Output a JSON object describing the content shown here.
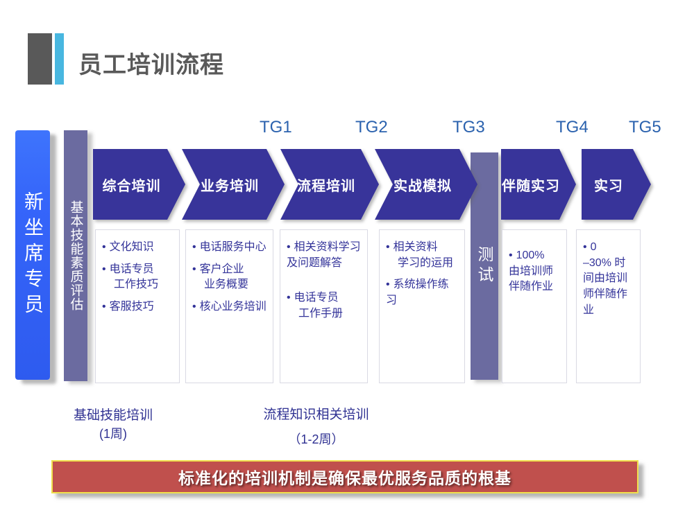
{
  "title": "员工培训流程",
  "bullet_char": "•",
  "role_bar": "新坐席专员",
  "assessment_bar": "基本技能素质评估",
  "test_bar": "测试",
  "tg_labels": [
    "TG1",
    "TG2",
    "TG3",
    "TG4",
    "TG5"
  ],
  "stages": [
    "综合培训",
    "业务培训",
    "流程培训",
    "实战模拟",
    "伴随实习",
    "实习"
  ],
  "columns": [
    {
      "items": [
        {
          "lines": [
            "文化知识"
          ]
        },
        {
          "lines": [
            "电话专员",
            "工作技巧"
          ]
        },
        {
          "lines": [
            "客服技巧"
          ]
        }
      ]
    },
    {
      "items": [
        {
          "lines": [
            "电话服务中心"
          ]
        },
        {
          "lines": [
            "客户企业",
            "业务概要"
          ]
        },
        {
          "lines": [
            "核心业务培训"
          ]
        }
      ]
    },
    {
      "items": [
        {
          "lines": [
            "相关资料学习及问题解答"
          ]
        },
        {
          "lines": [
            "电话专员",
            "工作手册"
          ]
        }
      ]
    },
    {
      "items": [
        {
          "lines": [
            "相关资料",
            "学习的运用"
          ]
        },
        {
          "lines": [
            "系统操作练习"
          ]
        }
      ]
    },
    {
      "items": [
        {
          "lines": [
            "100%",
            "由培训师伴随作业"
          ]
        }
      ]
    },
    {
      "items": [
        {
          "lines": [
            "0",
            "–30% 时间由培训师伴随作业"
          ]
        }
      ]
    }
  ],
  "footnotes": [
    {
      "line1": "基础技能培训",
      "line2": "(1周)"
    },
    {
      "line1": "流程知识相关培训",
      "line2": "（1-2周）"
    }
  ],
  "banner": "标准化的培训机制是确保最优服务品质的根基",
  "colors": {
    "title_gray": "#595959",
    "accent_cyan": "#48B7E0",
    "blue_bar": "#3565FA",
    "slate": "#6B6BA0",
    "arrow": "#38349A",
    "tg_blue": "#2B62AE",
    "text_navy": "#333399",
    "banner_bg": "#C0504D",
    "banner_border": "#F0DF4B"
  }
}
